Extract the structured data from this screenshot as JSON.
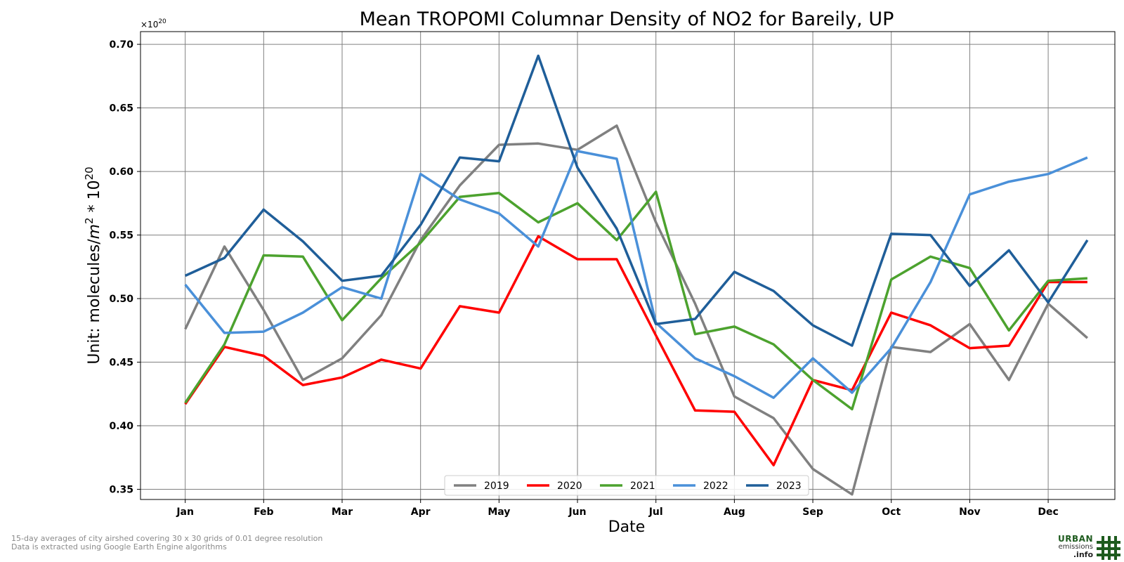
{
  "colors": {
    "2019": "#808080",
    "2020": "#ff0000",
    "2021": "#4ca22e",
    "2022": "#4a90d9",
    "2023": "#1f5e99"
  },
  "footer": {
    "line1": "15-day averages of city airshed covering 30 x 30 grids of 0.01 degree resolution",
    "line2": "Data is extracted using Google Earth Engine algorithms"
  },
  "logo": {
    "line1": "URBAN",
    "line2": "emissions",
    "line3": ".info",
    "icon": "grid-hash-icon"
  },
  "chart_data": {
    "type": "line",
    "title": "Mean TROPOMI Columnar Density of NO2 for Bareily, UP",
    "xlabel": "Date",
    "ylabel": "Unit: molecules/m² * 10²⁰",
    "ylabel_main": "Unit: molecules/",
    "ylabel_m": "m",
    "ylabel_sup1": "2",
    "ylabel_mid": " * 10",
    "ylabel_sup2": "20",
    "scale_base": "×10",
    "scale_exp": "20",
    "ylim": [
      0.342,
      0.71
    ],
    "yticks": [
      0.35,
      0.4,
      0.45,
      0.5,
      0.55,
      0.6,
      0.65,
      0.7
    ],
    "ytick_labels": [
      "0.35",
      "0.40",
      "0.45",
      "0.50",
      "0.55",
      "0.60",
      "0.65",
      "0.70"
    ],
    "xlim": [
      -0.57,
      11.85
    ],
    "xticks": [
      0,
      1,
      2,
      3,
      4,
      5,
      6,
      7,
      8,
      9,
      10,
      11
    ],
    "xtick_labels": [
      "Jan",
      "Feb",
      "Mar",
      "Apr",
      "May",
      "Jun",
      "Jul",
      "Aug",
      "Sep",
      "Oct",
      "Nov",
      "Dec"
    ],
    "x": [
      0,
      0.5,
      1,
      1.5,
      2,
      2.5,
      3,
      3.5,
      4,
      4.5,
      5,
      5.5,
      6,
      6.5,
      7,
      7.5,
      8,
      8.5,
      9,
      9.5,
      10,
      10.5,
      11,
      11.5
    ],
    "grid": true,
    "legend": "bottom-center",
    "series": [
      {
        "name": "2019",
        "values": [
          0.476,
          0.541,
          0.491,
          0.436,
          0.453,
          0.487,
          0.546,
          0.589,
          0.621,
          0.622,
          0.617,
          0.636,
          0.56,
          0.496,
          0.423,
          0.406,
          0.366,
          0.346,
          0.462,
          0.458,
          0.48,
          0.436,
          0.496,
          0.469
        ]
      },
      {
        "name": "2020",
        "values": [
          0.417,
          0.462,
          0.455,
          0.432,
          0.438,
          0.452,
          0.445,
          0.494,
          0.489,
          0.549,
          0.531,
          0.531,
          0.471,
          0.412,
          0.411,
          0.369,
          0.436,
          0.428,
          0.489,
          0.479,
          0.461,
          0.463,
          0.513,
          0.513
        ]
      },
      {
        "name": "2021",
        "values": [
          0.418,
          0.464,
          0.534,
          0.533,
          0.483,
          0.516,
          0.544,
          0.58,
          0.583,
          0.56,
          0.575,
          0.546,
          0.584,
          0.472,
          0.478,
          0.464,
          0.436,
          0.413,
          0.515,
          0.533,
          0.524,
          0.475,
          0.514,
          0.516
        ]
      },
      {
        "name": "2022",
        "values": [
          0.511,
          0.473,
          0.474,
          0.489,
          0.509,
          0.5,
          0.598,
          0.578,
          0.567,
          0.541,
          0.616,
          0.61,
          0.481,
          0.453,
          0.439,
          0.422,
          0.453,
          0.426,
          0.461,
          0.513,
          0.582,
          0.592,
          0.598,
          0.611
        ]
      },
      {
        "name": "2023",
        "values": [
          0.518,
          0.532,
          0.57,
          0.545,
          0.514,
          0.518,
          0.558,
          0.611,
          0.608,
          0.691,
          0.603,
          0.555,
          0.48,
          0.484,
          0.521,
          0.506,
          0.479,
          0.463,
          0.551,
          0.55,
          0.51,
          0.538,
          0.497,
          0.546
        ]
      }
    ]
  }
}
